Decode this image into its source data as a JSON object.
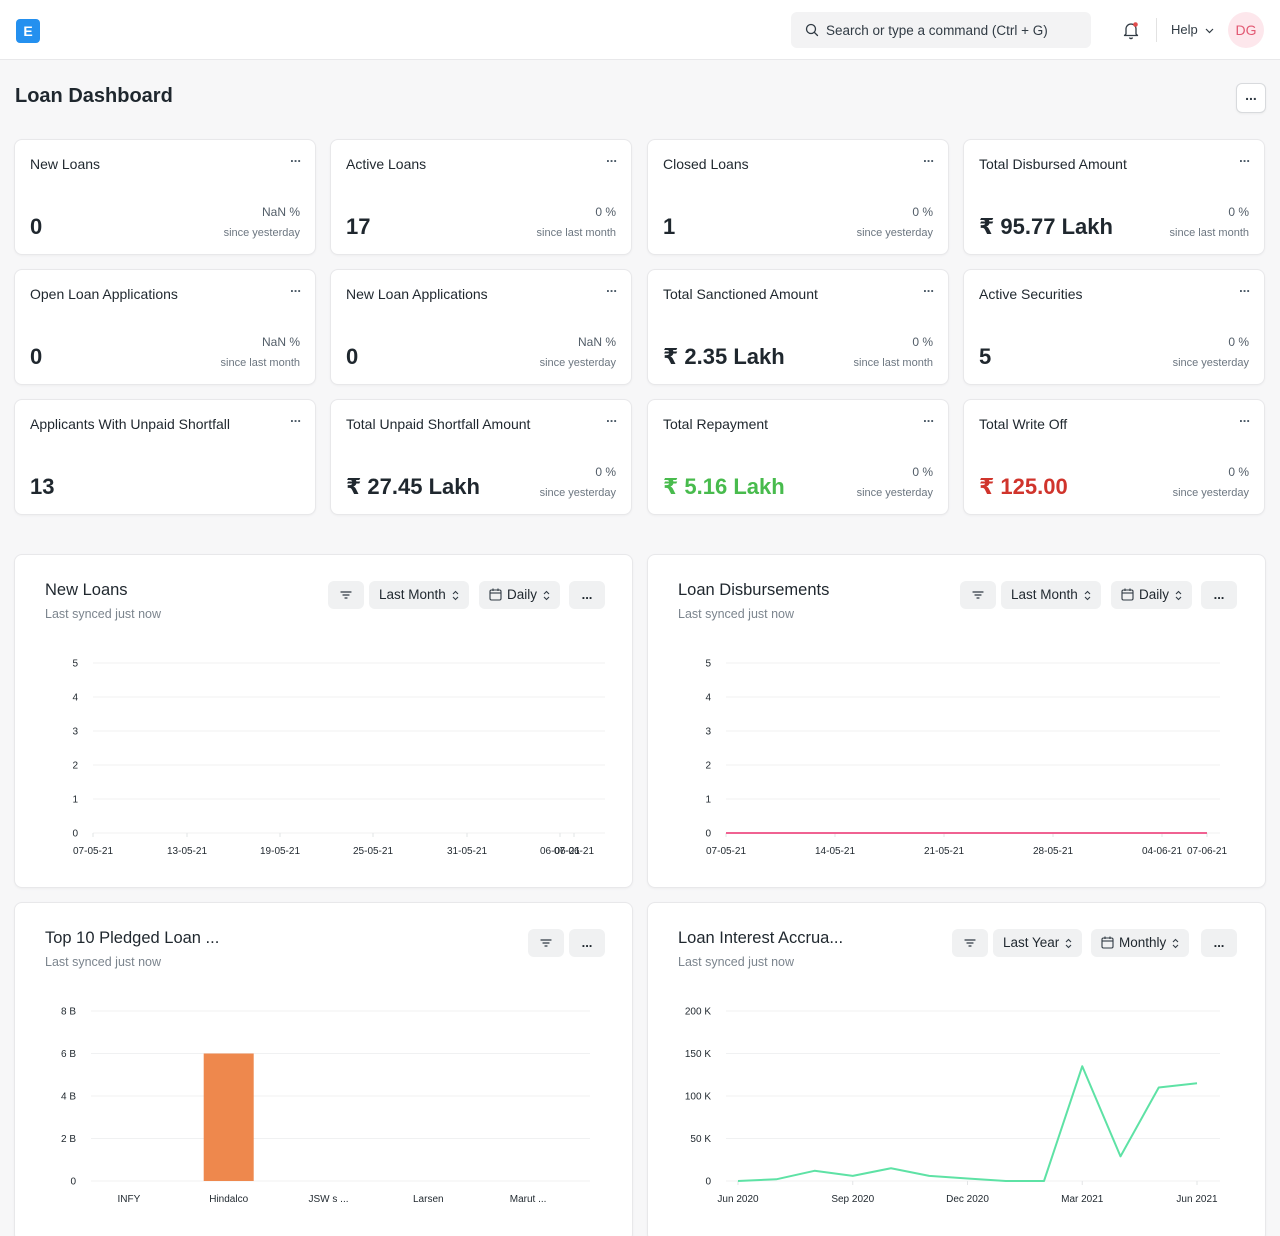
{
  "app": {
    "logo_letter": "E",
    "user_initials": "DG"
  },
  "navbar": {
    "search_placeholder": "Search or type a command (Ctrl + G)",
    "help_label": "Help"
  },
  "page": {
    "title": "Loan Dashboard",
    "menu_label": "..."
  },
  "cards": [
    {
      "title": "New Loans",
      "value": "0",
      "pct": "NaN %",
      "since": "since yesterday",
      "color": "default"
    },
    {
      "title": "Active Loans",
      "value": "17",
      "pct": "0 %",
      "since": "since last month",
      "color": "default"
    },
    {
      "title": "Closed Loans",
      "value": "1",
      "pct": "0 %",
      "since": "since yesterday",
      "color": "default"
    },
    {
      "title": "Total Disbursed Amount",
      "value": "₹ 95.77 Lakh",
      "pct": "0 %",
      "since": "since last month",
      "color": "default"
    },
    {
      "title": "Open Loan Applications",
      "value": "0",
      "pct": "NaN %",
      "since": "since last month",
      "color": "default"
    },
    {
      "title": "New Loan Applications",
      "value": "0",
      "pct": "NaN %",
      "since": "since yesterday",
      "color": "default"
    },
    {
      "title": "Total Sanctioned Amount",
      "value": "₹ 2.35 Lakh",
      "pct": "0 %",
      "since": "since last month",
      "color": "default"
    },
    {
      "title": "Active Securities",
      "value": "5",
      "pct": "0 %",
      "since": "since yesterday",
      "color": "default"
    },
    {
      "title": "Applicants With Unpaid Shortfall",
      "value": "13",
      "pct": "",
      "since": "",
      "color": "default"
    },
    {
      "title": "Total Unpaid Shortfall Amount",
      "value": "₹ 27.45 Lakh",
      "pct": "0 %",
      "since": "since yesterday",
      "color": "default"
    },
    {
      "title": "Total Repayment",
      "value": "₹ 5.16 Lakh",
      "pct": "0 %",
      "since": "since yesterday",
      "color": "green"
    },
    {
      "title": "Total Write Off",
      "value": "₹ 125.00",
      "pct": "0 %",
      "since": "since yesterday",
      "color": "red"
    }
  ],
  "card_menu_label": "...",
  "colors": {
    "green": "#48bb4d",
    "red": "#d0342c",
    "pink_line": "#f06292",
    "orange_bar": "#ee884d",
    "teal_line": "#5ee2a5"
  },
  "charts": [
    {
      "title": "New Loans",
      "synced": "Last synced just now",
      "timespan": "Last Month",
      "interval": "Daily",
      "menu": "...",
      "chart_data": {
        "type": "line",
        "x": [
          "07-05-21",
          "13-05-21",
          "19-05-21",
          "25-05-21",
          "31-05-21",
          "06-06-21",
          "07-06-21"
        ],
        "series": [],
        "ylim": [
          0,
          5
        ],
        "yticks": [
          "0",
          "1",
          "2",
          "3",
          "4",
          "5"
        ]
      }
    },
    {
      "title": "Loan Disbursements",
      "synced": "Last synced just now",
      "timespan": "Last Month",
      "interval": "Daily",
      "menu": "...",
      "chart_data": {
        "type": "line",
        "x": [
          "07-05-21",
          "14-05-21",
          "21-05-21",
          "28-05-21",
          "04-06-21",
          "07-06-21"
        ],
        "series": [
          {
            "values": [
              0,
              0,
              0,
              0,
              0,
              0
            ]
          }
        ],
        "ylim": [
          0,
          5
        ],
        "yticks": [
          "0",
          "1",
          "2",
          "3",
          "4",
          "5"
        ]
      }
    },
    {
      "title": "Top 10 Pledged Loan ...",
      "synced": "Last synced just now",
      "menu": "...",
      "chart_data": {
        "type": "bar",
        "categories": [
          "INFY",
          "Hindalco",
          "JSW s ...",
          "Larsen",
          "Marut ..."
        ],
        "values": [
          0,
          6000000000,
          0,
          0,
          0
        ],
        "ylim": [
          0,
          8000000000
        ],
        "yticks": [
          "0",
          "2 B",
          "4 B",
          "6 B",
          "8 B"
        ]
      }
    },
    {
      "title": "Loan Interest Accrua...",
      "synced": "Last synced just now",
      "timespan": "Last Year",
      "interval": "Monthly",
      "menu": "...",
      "chart_data": {
        "type": "line",
        "x": [
          "Jun 2020",
          "Jul 2020",
          "Aug 2020",
          "Sep 2020",
          "Oct 2020",
          "Nov 2020",
          "Dec 2020",
          "Jan 2021",
          "Feb 2021",
          "Mar 2021",
          "Apr 2021",
          "May 2021",
          "Jun 2021"
        ],
        "xtick_labels": [
          "Jun 2020",
          "Sep 2020",
          "Dec 2020",
          "Mar 2021",
          "Jun 2021"
        ],
        "series": [
          {
            "values": [
              0,
              2000,
              12000,
              6000,
              15000,
              6000,
              3000,
              0,
              0,
              135000,
              29000,
              110000,
              115000
            ]
          }
        ],
        "ylim": [
          0,
          200000
        ],
        "yticks": [
          "0",
          "50 K",
          "100 K",
          "150 K",
          "200 K"
        ]
      }
    }
  ]
}
